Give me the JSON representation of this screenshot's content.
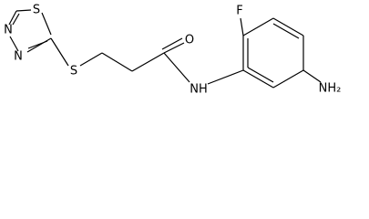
{
  "atoms": {
    "ring_s": "S",
    "ring_n1": "N",
    "ring_n2": "N",
    "thioether_s": "S",
    "carbonyl_o": "O",
    "amide_n": "NH",
    "fluorine": "F",
    "amine": "NH₂"
  }
}
